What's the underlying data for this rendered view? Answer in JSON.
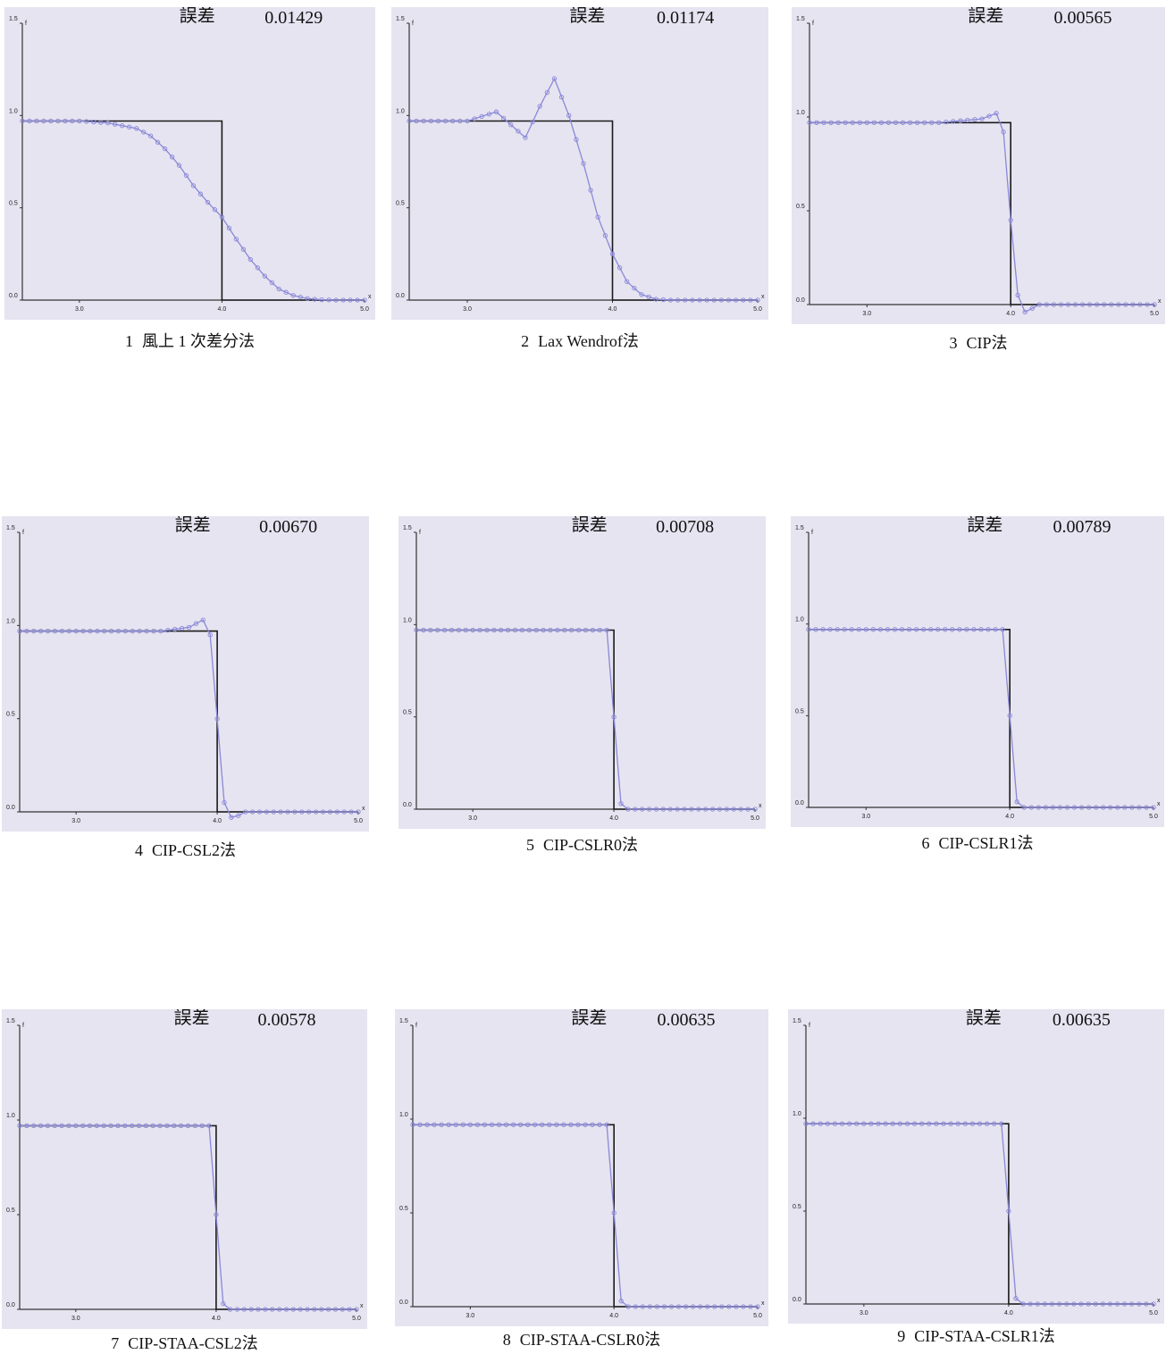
{
  "error_label": "誤差",
  "axis": {
    "x_name": "x",
    "y_name": "f",
    "x_ticks": [
      "3.0",
      "4.0",
      "5.0"
    ],
    "y_ticks": [
      "0.0",
      "0.5",
      "1.0",
      "1.5"
    ]
  },
  "chart_data": [
    {
      "type": "line",
      "caption_num": "1",
      "caption": "風上 1 次差分法",
      "error": "0.01429",
      "xlim": [
        2.6,
        5.0
      ],
      "ylim": [
        0.0,
        1.5
      ],
      "exact": {
        "x": [
          2.6,
          4.0,
          4.0,
          5.0
        ],
        "y": [
          0.97,
          0.97,
          0.0,
          0.0
        ]
      },
      "series": [
        {
          "x": [
            2.6,
            3.0,
            3.2,
            3.4,
            3.5,
            3.6,
            3.7,
            3.8,
            3.9,
            4.0,
            4.1,
            4.2,
            4.3,
            4.4,
            4.5,
            4.6,
            4.7,
            4.8
          ],
          "y": [
            0.97,
            0.97,
            0.96,
            0.93,
            0.89,
            0.82,
            0.73,
            0.62,
            0.53,
            0.45,
            0.33,
            0.22,
            0.13,
            0.06,
            0.025,
            0.008,
            0.002,
            0.0
          ]
        }
      ]
    },
    {
      "type": "line",
      "caption_num": "2",
      "caption": "Lax Wendrof法",
      "error": "0.01174",
      "xlim": [
        2.6,
        5.0
      ],
      "ylim": [
        0.0,
        1.5
      ],
      "exact": {
        "x": [
          2.6,
          4.0,
          4.0,
          5.0
        ],
        "y": [
          0.97,
          0.97,
          0.0,
          0.0
        ]
      },
      "series": [
        {
          "x": [
            2.6,
            3.0,
            3.2,
            3.4,
            3.5,
            3.6,
            3.7,
            3.8,
            3.9,
            4.0,
            4.1,
            4.2,
            4.3,
            4.4,
            4.5
          ],
          "y": [
            0.97,
            0.97,
            1.02,
            0.88,
            1.05,
            1.2,
            1.0,
            0.74,
            0.45,
            0.25,
            0.1,
            0.03,
            0.005,
            0.0,
            0.0
          ]
        }
      ]
    },
    {
      "type": "line",
      "caption_num": "3",
      "caption": "CIP法",
      "error": "0.00565",
      "xlim": [
        2.6,
        5.0
      ],
      "ylim": [
        0.0,
        1.5
      ],
      "exact": {
        "x": [
          2.6,
          4.0,
          4.0,
          5.0
        ],
        "y": [
          0.97,
          0.97,
          0.0,
          0.0
        ]
      },
      "series": [
        {
          "x": [
            2.6,
            3.5,
            3.8,
            3.9,
            3.95,
            4.0,
            4.05,
            4.1,
            4.15,
            4.2,
            5.0
          ],
          "y": [
            0.97,
            0.97,
            0.99,
            1.02,
            0.92,
            0.45,
            0.05,
            -0.04,
            -0.02,
            0.0,
            0.0
          ]
        }
      ]
    },
    {
      "type": "line",
      "caption_num": "4",
      "caption": "CIP-CSL2法",
      "error": "0.00670",
      "xlim": [
        2.6,
        5.0
      ],
      "ylim": [
        0.0,
        1.5
      ],
      "exact": {
        "x": [
          2.6,
          4.0,
          4.0,
          5.0
        ],
        "y": [
          0.97,
          0.97,
          0.0,
          0.0
        ]
      },
      "series": [
        {
          "x": [
            2.6,
            3.6,
            3.8,
            3.9,
            3.95,
            4.0,
            4.05,
            4.1,
            4.15,
            4.2,
            5.0
          ],
          "y": [
            0.97,
            0.97,
            0.99,
            1.03,
            0.95,
            0.5,
            0.05,
            -0.03,
            -0.02,
            0.0,
            0.0
          ]
        }
      ]
    },
    {
      "type": "line",
      "caption_num": "5",
      "caption": "CIP-CSLR0法",
      "error": "0.00708",
      "xlim": [
        2.6,
        5.0
      ],
      "ylim": [
        0.0,
        1.5
      ],
      "exact": {
        "x": [
          2.6,
          4.0,
          4.0,
          5.0
        ],
        "y": [
          0.97,
          0.97,
          0.0,
          0.0
        ]
      },
      "series": [
        {
          "x": [
            2.6,
            3.95,
            4.0,
            4.05,
            4.1,
            5.0
          ],
          "y": [
            0.97,
            0.97,
            0.5,
            0.03,
            0.0,
            0.0
          ]
        }
      ]
    },
    {
      "type": "line",
      "caption_num": "6",
      "caption": "CIP-CSLR1法",
      "error": "0.00789",
      "xlim": [
        2.6,
        5.0
      ],
      "ylim": [
        0.0,
        1.5
      ],
      "exact": {
        "x": [
          2.6,
          4.0,
          4.0,
          5.0
        ],
        "y": [
          0.97,
          0.97,
          0.0,
          0.0
        ]
      },
      "series": [
        {
          "x": [
            2.6,
            3.95,
            4.0,
            4.05,
            4.1,
            5.0
          ],
          "y": [
            0.97,
            0.97,
            0.5,
            0.03,
            0.0,
            0.0
          ]
        }
      ]
    },
    {
      "type": "line",
      "caption_num": "7",
      "caption": "CIP-STAA-CSL2法",
      "error": "0.00578",
      "xlim": [
        2.6,
        5.0
      ],
      "ylim": [
        0.0,
        1.5
      ],
      "exact": {
        "x": [
          2.6,
          4.0,
          4.0,
          5.0
        ],
        "y": [
          0.97,
          0.97,
          0.0,
          0.0
        ]
      },
      "series": [
        {
          "x": [
            2.6,
            3.95,
            4.0,
            4.05,
            4.1,
            5.0
          ],
          "y": [
            0.97,
            0.97,
            0.5,
            0.03,
            0.0,
            0.0
          ]
        }
      ]
    },
    {
      "type": "line",
      "caption_num": "8",
      "caption": "CIP-STAA-CSLR0法",
      "error": "0.00635",
      "xlim": [
        2.6,
        5.0
      ],
      "ylim": [
        0.0,
        1.5
      ],
      "exact": {
        "x": [
          2.6,
          4.0,
          4.0,
          5.0
        ],
        "y": [
          0.97,
          0.97,
          0.0,
          0.0
        ]
      },
      "series": [
        {
          "x": [
            2.6,
            3.95,
            4.0,
            4.05,
            4.1,
            5.0
          ],
          "y": [
            0.97,
            0.97,
            0.5,
            0.03,
            0.0,
            0.0
          ]
        }
      ]
    },
    {
      "type": "line",
      "caption_num": "9",
      "caption": "CIP-STAA-CSLR1法",
      "error": "0.00635",
      "xlim": [
        2.6,
        5.0
      ],
      "ylim": [
        0.0,
        1.5
      ],
      "exact": {
        "x": [
          2.6,
          4.0,
          4.0,
          5.0
        ],
        "y": [
          0.97,
          0.97,
          0.0,
          0.0
        ]
      },
      "series": [
        {
          "x": [
            2.6,
            3.95,
            4.0,
            4.05,
            4.1,
            5.0
          ],
          "y": [
            0.97,
            0.97,
            0.5,
            0.03,
            0.0,
            0.0
          ]
        }
      ]
    }
  ],
  "colors": {
    "exact": "#1a1a1a",
    "numeric": "#8a88d8",
    "background": "#e6e4f0"
  }
}
